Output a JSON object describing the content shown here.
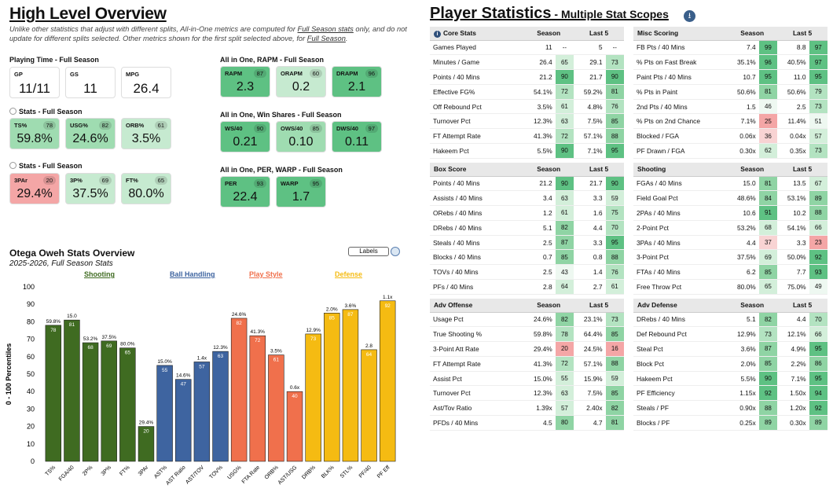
{
  "overview": {
    "title": "High Level Overview",
    "note_a": "Unlike other statistics that adjust with different splits, All-in-One metrics are computed for ",
    "note_link1": "Full Season stats",
    "note_b": " only, and do not update for different splits selected. Other metrics shown for the first split selected above, for ",
    "note_link2": "Full Season",
    "note_c": "."
  },
  "playing_time": {
    "label": "Playing Time - Full Season",
    "gp": {
      "l": "GP",
      "v": "11/11"
    },
    "gs": {
      "l": "GS",
      "v": "11"
    },
    "mpg": {
      "l": "MPG",
      "v": "26.4"
    }
  },
  "stats1": {
    "label": "Stats - Full Season",
    "items": [
      {
        "l": "TS%",
        "v": "59.8%",
        "p": "78"
      },
      {
        "l": "USG%",
        "v": "24.6%",
        "p": "82"
      },
      {
        "l": "ORB%",
        "v": "3.5%",
        "p": "61"
      }
    ]
  },
  "stats2": {
    "label": "Stats - Full Season",
    "items": [
      {
        "l": "3PAr",
        "v": "29.4%",
        "p": "20"
      },
      {
        "l": "3P%",
        "v": "37.5%",
        "p": "69"
      },
      {
        "l": "FT%",
        "v": "80.0%",
        "p": "65"
      }
    ]
  },
  "rapm": {
    "label": "All in One, RAPM - Full Season",
    "items": [
      {
        "l": "RAPM",
        "v": "2.3",
        "p": "87"
      },
      {
        "l": "ORAPM",
        "v": "0.2",
        "p": "60"
      },
      {
        "l": "DRAPM",
        "v": "2.1",
        "p": "96"
      }
    ]
  },
  "ws": {
    "label": "All in One, Win Shares - Full Season",
    "items": [
      {
        "l": "WS/40",
        "v": "0.21",
        "p": "90"
      },
      {
        "l": "OWS/40",
        "v": "0.10",
        "p": "85"
      },
      {
        "l": "DWS/40",
        "v": "0.11",
        "p": "97"
      }
    ]
  },
  "per": {
    "label": "All in One, PER, WARP - Full Season",
    "items": [
      {
        "l": "PER",
        "v": "22.4",
        "p": "93"
      },
      {
        "l": "WARP",
        "v": "1.7",
        "p": "95"
      }
    ]
  },
  "chart_title": "Otega Oweh Stats Overview",
  "chart_sub": "2025-2026, Full Season Stats",
  "labels_btn": "Labels",
  "categories": {
    "shooting": "Shooting",
    "ball": "Ball Handling",
    "play": "Play Style",
    "defense": "Defense"
  },
  "chart_data": {
    "type": "bar",
    "ylabel": "0 - 100 Percentiles",
    "ylim": [
      0,
      100
    ],
    "yticks": [
      0,
      10,
      20,
      30,
      40,
      50,
      60,
      70,
      80,
      90,
      100
    ],
    "categories": [
      "TS%",
      "FGA/40",
      "2P%",
      "3P%",
      "FT%",
      "3PAr",
      "AST%",
      "AST Ratio",
      "AST/TOV",
      "TOV%",
      "USG%",
      "FTA Rate",
      "ORB%",
      "AST/USG",
      "DRB%",
      "BLK%",
      "STL%",
      "PF/40",
      "PF Eff"
    ],
    "values": [
      78,
      81,
      68,
      69,
      65,
      20,
      55,
      47,
      57,
      63,
      82,
      72,
      61,
      40,
      73,
      85,
      87,
      64,
      92
    ],
    "raw": [
      "59.8%",
      "15.0",
      "53.2%",
      "37.5%",
      "80.0%",
      "29.4%",
      "15.0%",
      "14.6%",
      "1.4x",
      "12.3%",
      "24.6%",
      "41.3%",
      "3.5%",
      "0.6x",
      "12.9%",
      "2.0%",
      "3.6%",
      "2.8",
      "1.1x"
    ],
    "groups": [
      "Shooting",
      "Shooting",
      "Shooting",
      "Shooting",
      "Shooting",
      "Shooting",
      "Ball Handling",
      "Ball Handling",
      "Ball Handling",
      "Ball Handling",
      "Play Style",
      "Play Style",
      "Play Style",
      "Play Style",
      "Defense",
      "Defense",
      "Defense",
      "Defense",
      "Defense"
    ],
    "colors": {
      "Shooting": "#3f6b21",
      "Ball Handling": "#3e64a0",
      "Play Style": "#f0704c",
      "Defense": "#f5bb12"
    }
  },
  "ps": {
    "title": "Player Statistics",
    "sub": " - Multiple Stat Scopes",
    "h_season": "Season",
    "h_last5": "Last 5"
  },
  "tables": [
    {
      "title": "Core Stats",
      "rows": [
        [
          "Games Played",
          "11",
          "--",
          "5",
          "--"
        ],
        [
          "Minutes / Game",
          "26.4",
          "65",
          "29.1",
          "73"
        ],
        [
          "Points / 40 Mins",
          "21.2",
          "90",
          "21.7",
          "90"
        ],
        [
          "Effective FG%",
          "54.1%",
          "72",
          "59.2%",
          "81"
        ],
        [
          "Off Rebound Pct",
          "3.5%",
          "61",
          "4.8%",
          "76"
        ],
        [
          "Turnover Pct",
          "12.3%",
          "63",
          "7.5%",
          "85"
        ],
        [
          "FT Attempt Rate",
          "41.3%",
          "72",
          "57.1%",
          "88"
        ],
        [
          "Hakeem Pct",
          "5.5%",
          "90",
          "7.1%",
          "95"
        ]
      ]
    },
    {
      "title": "Misc Scoring",
      "rows": [
        [
          "FB Pts / 40 Mins",
          "7.4",
          "99",
          "8.8",
          "97"
        ],
        [
          "% Pts on Fast Break",
          "35.1%",
          "96",
          "40.5%",
          "97"
        ],
        [
          "Paint Pts / 40 Mins",
          "10.7",
          "95",
          "11.0",
          "95"
        ],
        [
          "% Pts in Paint",
          "50.6%",
          "81",
          "50.6%",
          "79"
        ],
        [
          "2nd Pts / 40 Mins",
          "1.5",
          "46",
          "2.5",
          "73"
        ],
        [
          "% Pts on 2nd Chance",
          "7.1%",
          "25",
          "11.4%",
          "51"
        ],
        [
          "Blocked / FGA",
          "0.06x",
          "36",
          "0.04x",
          "57"
        ],
        [
          "PF Drawn / FGA",
          "0.30x",
          "62",
          "0.35x",
          "73"
        ]
      ]
    },
    {
      "title": "Box Score",
      "rows": [
        [
          "Points / 40 Mins",
          "21.2",
          "90",
          "21.7",
          "90"
        ],
        [
          "Assists / 40 Mins",
          "3.4",
          "63",
          "3.3",
          "59"
        ],
        [
          "ORebs / 40 Mins",
          "1.2",
          "61",
          "1.6",
          "75"
        ],
        [
          "DRebs / 40 Mins",
          "5.1",
          "82",
          "4.4",
          "70"
        ],
        [
          "Steals / 40 Mins",
          "2.5",
          "87",
          "3.3",
          "95"
        ],
        [
          "Blocks / 40 Mins",
          "0.7",
          "85",
          "0.8",
          "88"
        ],
        [
          "TOVs / 40 Mins",
          "2.5",
          "43",
          "1.4",
          "76"
        ],
        [
          "PFs / 40 Mins",
          "2.8",
          "64",
          "2.7",
          "61"
        ]
      ]
    },
    {
      "title": "Shooting",
      "rows": [
        [
          "FGAs / 40 Mins",
          "15.0",
          "81",
          "13.5",
          "67"
        ],
        [
          "Field Goal Pct",
          "48.6%",
          "84",
          "53.1%",
          "89"
        ],
        [
          "2PAs / 40 Mins",
          "10.6",
          "91",
          "10.2",
          "88"
        ],
        [
          "2-Point Pct",
          "53.2%",
          "68",
          "54.1%",
          "66"
        ],
        [
          "3PAs / 40 Mins",
          "4.4",
          "37",
          "3.3",
          "23"
        ],
        [
          "3-Point Pct",
          "37.5%",
          "69",
          "50.0%",
          "92"
        ],
        [
          "FTAs / 40 Mins",
          "6.2",
          "85",
          "7.7",
          "93"
        ],
        [
          "Free Throw Pct",
          "80.0%",
          "65",
          "75.0%",
          "49"
        ]
      ]
    },
    {
      "title": "Adv Offense",
      "rows": [
        [
          "Usage Pct",
          "24.6%",
          "82",
          "23.1%",
          "73"
        ],
        [
          "True Shooting %",
          "59.8%",
          "78",
          "64.4%",
          "85"
        ],
        [
          "3-Point Att Rate",
          "29.4%",
          "20",
          "24.5%",
          "16"
        ],
        [
          "FT Attempt Rate",
          "41.3%",
          "72",
          "57.1%",
          "88"
        ],
        [
          "Assist Pct",
          "15.0%",
          "55",
          "15.9%",
          "59"
        ],
        [
          "Turnover Pct",
          "12.3%",
          "63",
          "7.5%",
          "85"
        ],
        [
          "Ast/Tov Ratio",
          "1.39x",
          "57",
          "2.40x",
          "82"
        ],
        [
          "PFDs / 40 Mins",
          "4.5",
          "80",
          "4.7",
          "81"
        ]
      ]
    },
    {
      "title": "Adv Defense",
      "rows": [
        [
          "DRebs / 40 Mins",
          "5.1",
          "82",
          "4.4",
          "70"
        ],
        [
          "Def Rebound Pct",
          "12.9%",
          "73",
          "12.1%",
          "66"
        ],
        [
          "Steal Pct",
          "3.6%",
          "87",
          "4.9%",
          "95"
        ],
        [
          "Block Pct",
          "2.0%",
          "85",
          "2.2%",
          "86"
        ],
        [
          "Hakeem Pct",
          "5.5%",
          "90",
          "7.1%",
          "95"
        ],
        [
          "PF Efficiency",
          "1.15x",
          "92",
          "1.50x",
          "94"
        ],
        [
          "Steals / PF",
          "0.90x",
          "88",
          "1.20x",
          "92"
        ],
        [
          "Blocks / PF",
          "0.25x",
          "89",
          "0.30x",
          "89"
        ]
      ]
    }
  ]
}
